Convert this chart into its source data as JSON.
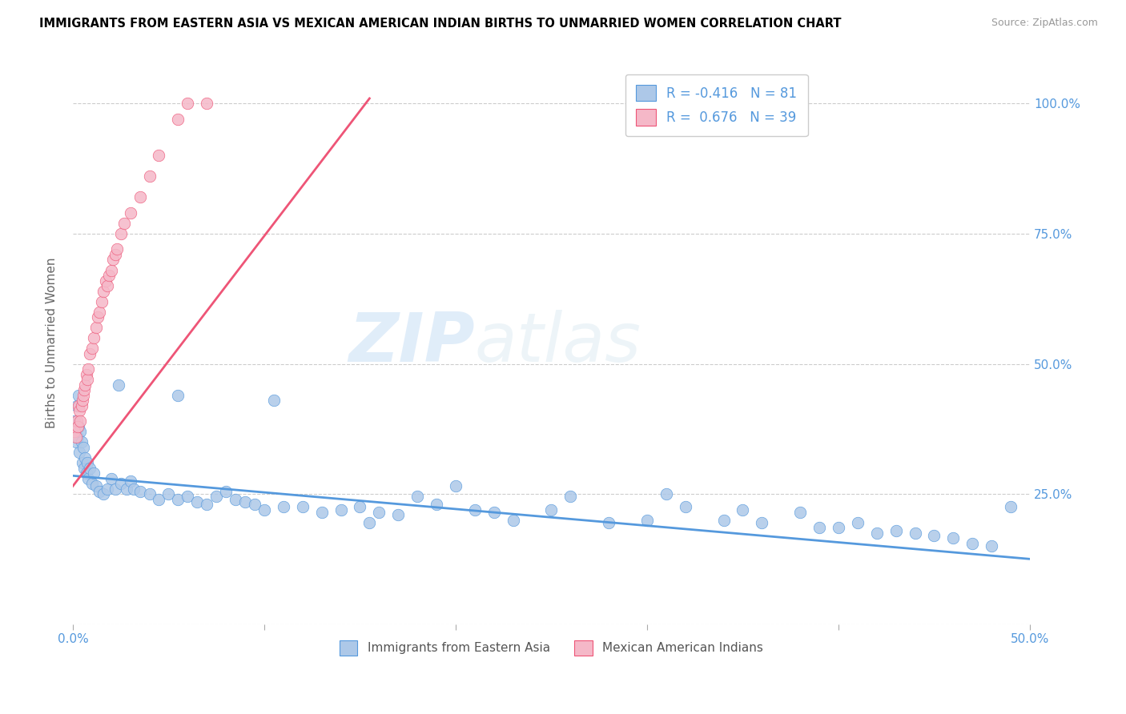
{
  "title": "IMMIGRANTS FROM EASTERN ASIA VS MEXICAN AMERICAN INDIAN BIRTHS TO UNMARRIED WOMEN CORRELATION CHART",
  "source": "Source: ZipAtlas.com",
  "ylabel": "Births to Unmarried Women",
  "ytick_vals": [
    0.0,
    0.25,
    0.5,
    0.75,
    1.0
  ],
  "ytick_labels": [
    "",
    "25.0%",
    "50.0%",
    "75.0%",
    "100.0%"
  ],
  "xtick_vals": [
    0.0,
    0.1,
    0.2,
    0.3,
    0.4,
    0.5
  ],
  "xtick_labels": [
    "0.0%",
    "",
    "",
    "",
    "",
    "50.0%"
  ],
  "xlim": [
    0,
    0.5
  ],
  "ylim": [
    0,
    1.08
  ],
  "watermark_zip": "ZIP",
  "watermark_atlas": "atlas",
  "color_blue": "#adc8e8",
  "color_pink": "#f5b8c8",
  "line_color_blue": "#5599dd",
  "line_color_pink": "#ee5577",
  "legend_label1": "Immigrants from Eastern Asia",
  "legend_label2": "Mexican American Indians",
  "legend_r1_prefix": "R = ",
  "legend_r1_val": "-0.416",
  "legend_r1_n": "N = 81",
  "legend_r2_prefix": "R =  ",
  "legend_r2_val": "0.676",
  "legend_r2_n": "N = 39",
  "blue_line_x": [
    0.0,
    0.5
  ],
  "blue_line_y": [
    0.285,
    0.125
  ],
  "pink_line_x": [
    0.0,
    0.155
  ],
  "pink_line_y": [
    0.265,
    1.01
  ],
  "blue_x": [
    0.001,
    0.0015,
    0.002,
    0.0025,
    0.003,
    0.003,
    0.0035,
    0.004,
    0.0045,
    0.005,
    0.0055,
    0.006,
    0.0065,
    0.007,
    0.0075,
    0.008,
    0.009,
    0.01,
    0.011,
    0.012,
    0.014,
    0.016,
    0.018,
    0.02,
    0.022,
    0.025,
    0.028,
    0.03,
    0.032,
    0.035,
    0.04,
    0.045,
    0.05,
    0.055,
    0.06,
    0.065,
    0.07,
    0.075,
    0.08,
    0.085,
    0.09,
    0.095,
    0.1,
    0.11,
    0.12,
    0.13,
    0.14,
    0.15,
    0.16,
    0.17,
    0.18,
    0.19,
    0.2,
    0.21,
    0.22,
    0.23,
    0.25,
    0.26,
    0.28,
    0.3,
    0.31,
    0.32,
    0.34,
    0.35,
    0.36,
    0.38,
    0.39,
    0.4,
    0.41,
    0.42,
    0.43,
    0.44,
    0.45,
    0.46,
    0.47,
    0.48,
    0.49,
    0.024,
    0.055,
    0.105,
    0.155
  ],
  "blue_y": [
    0.39,
    0.35,
    0.42,
    0.36,
    0.38,
    0.44,
    0.33,
    0.37,
    0.35,
    0.31,
    0.34,
    0.3,
    0.32,
    0.29,
    0.31,
    0.28,
    0.3,
    0.27,
    0.29,
    0.265,
    0.255,
    0.25,
    0.26,
    0.28,
    0.26,
    0.27,
    0.26,
    0.275,
    0.26,
    0.255,
    0.25,
    0.24,
    0.25,
    0.24,
    0.245,
    0.235,
    0.23,
    0.245,
    0.255,
    0.24,
    0.235,
    0.23,
    0.22,
    0.225,
    0.225,
    0.215,
    0.22,
    0.225,
    0.215,
    0.21,
    0.245,
    0.23,
    0.265,
    0.22,
    0.215,
    0.2,
    0.22,
    0.245,
    0.195,
    0.2,
    0.25,
    0.225,
    0.2,
    0.22,
    0.195,
    0.215,
    0.185,
    0.185,
    0.195,
    0.175,
    0.18,
    0.175,
    0.17,
    0.165,
    0.155,
    0.15,
    0.225,
    0.46,
    0.44,
    0.43,
    0.195
  ],
  "pink_x": [
    0.001,
    0.0015,
    0.002,
    0.0025,
    0.003,
    0.0035,
    0.004,
    0.0045,
    0.005,
    0.0055,
    0.006,
    0.0065,
    0.007,
    0.0075,
    0.008,
    0.009,
    0.01,
    0.011,
    0.012,
    0.013,
    0.014,
    0.015,
    0.016,
    0.017,
    0.018,
    0.019,
    0.02,
    0.021,
    0.022,
    0.023,
    0.025,
    0.027,
    0.03,
    0.035,
    0.04,
    0.045,
    0.055,
    0.06,
    0.07
  ],
  "pink_y": [
    0.37,
    0.36,
    0.39,
    0.38,
    0.42,
    0.41,
    0.39,
    0.42,
    0.43,
    0.44,
    0.45,
    0.46,
    0.48,
    0.47,
    0.49,
    0.52,
    0.53,
    0.55,
    0.57,
    0.59,
    0.6,
    0.62,
    0.64,
    0.66,
    0.65,
    0.67,
    0.68,
    0.7,
    0.71,
    0.72,
    0.75,
    0.77,
    0.79,
    0.82,
    0.86,
    0.9,
    0.97,
    1.0,
    1.0
  ]
}
